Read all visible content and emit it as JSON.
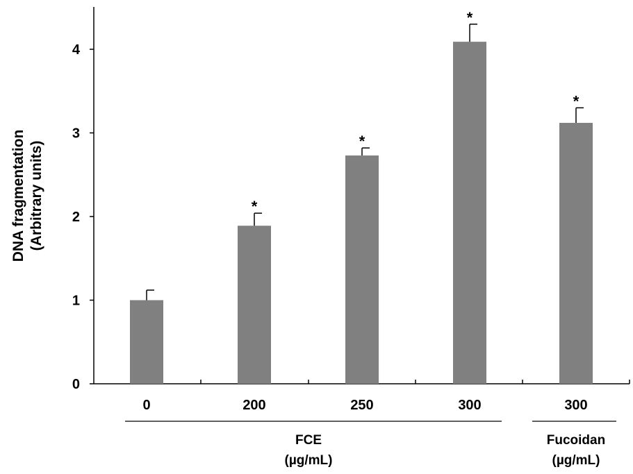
{
  "chart_data": {
    "type": "bar",
    "categories": [
      "0",
      "200",
      "250",
      "300",
      "300"
    ],
    "values": [
      1.0,
      1.89,
      2.73,
      4.09,
      3.12
    ],
    "errors": [
      0.12,
      0.15,
      0.09,
      0.21,
      0.18
    ],
    "significance": [
      "",
      "*",
      "*",
      "*",
      "*"
    ],
    "ylabel_line1": "DNA fragmentation",
    "ylabel_line2": "(Arbitrary units)",
    "ylim": [
      0,
      4.5
    ],
    "yticks": [
      "0",
      "1",
      "2",
      "3",
      "4"
    ],
    "groups": [
      {
        "label_line1": "FCE",
        "label_line2": "(µg/mL)"
      },
      {
        "label_line1": "Fucoidan",
        "label_line2": "(µg/mL)"
      }
    ],
    "bar_color": "#808080",
    "grid": false,
    "legend": "none"
  }
}
